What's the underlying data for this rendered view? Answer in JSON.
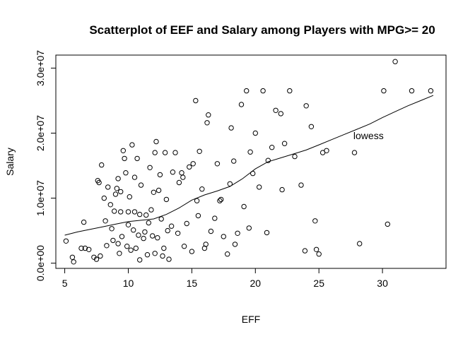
{
  "chart_data": {
    "type": "scatter",
    "title": "Scatterplot of EEF and Salary among Players with MPG>= 20",
    "xlabel": "EFF",
    "ylabel": "Salary",
    "xlim": [
      4.3,
      35.0
    ],
    "ylim": [
      -800000,
      32000000
    ],
    "xticks": [
      5,
      10,
      15,
      20,
      25,
      30
    ],
    "xtick_labels": [
      "5",
      "10",
      "15",
      "20",
      "25",
      "30"
    ],
    "yticks": [
      0,
      10000000,
      20000000,
      30000000
    ],
    "ytick_labels": [
      "0.0e+00",
      "1.0e+07",
      "2.0e+07",
      "3.0e+07"
    ],
    "annotation": {
      "text": "lowess",
      "x": 28.9,
      "y": 19600000
    },
    "lowess": {
      "x": [
        5.0,
        6.0,
        7.0,
        8.0,
        9.0,
        10.0,
        11.0,
        12.0,
        13.0,
        14.0,
        15.0,
        16.0,
        17.0,
        18.0,
        19.0,
        20.0,
        21.0,
        22.0,
        23.0,
        24.0,
        25.0,
        26.0,
        27.0,
        28.0,
        29.0,
        30.0,
        31.0,
        32.0,
        33.0,
        34.0
      ],
      "y": [
        4300000,
        4800000,
        5200000,
        5600000,
        6000000,
        6400000,
        6600000,
        6800000,
        7500000,
        8500000,
        9700000,
        10500000,
        11100000,
        11800000,
        13000000,
        14500000,
        15600000,
        16200000,
        16800000,
        17400000,
        18200000,
        19000000,
        19800000,
        20600000,
        21400000,
        22400000,
        23300000,
        24200000,
        25000000,
        25800000
      ]
    },
    "points": {
      "x": [
        5.1,
        5.6,
        5.7,
        6.3,
        6.5,
        6.6,
        6.9,
        7.3,
        7.5,
        7.6,
        7.7,
        7.8,
        7.9,
        8.1,
        8.2,
        8.3,
        8.4,
        8.6,
        8.7,
        8.8,
        8.9,
        9.0,
        9.1,
        9.2,
        9.2,
        9.3,
        9.4,
        9.4,
        9.5,
        9.6,
        9.7,
        9.8,
        9.9,
        10.0,
        10.0,
        10.1,
        10.2,
        10.3,
        10.4,
        10.5,
        10.5,
        10.6,
        10.7,
        10.8,
        10.9,
        11.0,
        11.2,
        11.4,
        11.5,
        11.6,
        11.7,
        11.8,
        11.9,
        12.0,
        12.1,
        12.2,
        12.3,
        12.4,
        12.5,
        12.6,
        12.7,
        12.8,
        12.9,
        13.0,
        13.2,
        13.4,
        13.5,
        13.7,
        13.9,
        14.0,
        14.2,
        14.4,
        14.6,
        14.8,
        15.0,
        15.1,
        15.3,
        15.4,
        15.6,
        15.8,
        16.0,
        16.2,
        16.3,
        16.5,
        16.8,
        17.0,
        17.3,
        17.5,
        17.8,
        18.0,
        18.1,
        18.3,
        18.6,
        18.9,
        19.1,
        19.3,
        19.5,
        19.8,
        20.0,
        20.3,
        20.6,
        21.0,
        21.3,
        21.6,
        22.0,
        22.3,
        22.7,
        23.1,
        23.6,
        24.0,
        24.4,
        24.7,
        25.0,
        25.3,
        25.6,
        27.8,
        28.2,
        30.1,
        30.4,
        31.0,
        32.3,
        33.8,
        10.9,
        11.3,
        12.1,
        13.1,
        14.3,
        15.5,
        16.1,
        17.2,
        18.4,
        19.6,
        20.9,
        22.1,
        23.9,
        24.8
      ],
      "y": [
        3400000,
        900000,
        200000,
        2300000,
        6300000,
        2300000,
        2100000,
        900000,
        600000,
        12700000,
        12400000,
        1100000,
        15100000,
        10000000,
        6500000,
        2700000,
        11700000,
        9000000,
        5300000,
        3500000,
        8000000,
        10600000,
        11500000,
        3000000,
        13000000,
        1500000,
        7900000,
        11000000,
        4100000,
        17300000,
        16100000,
        13900000,
        2600000,
        5900000,
        7900000,
        10200000,
        2000000,
        18200000,
        5100000,
        7900000,
        13200000,
        2300000,
        16100000,
        4300000,
        500000,
        12000000,
        3800000,
        7400000,
        1300000,
        6200000,
        14700000,
        8200000,
        4200000,
        10900000,
        17000000,
        18700000,
        3900000,
        11200000,
        13600000,
        6800000,
        1100000,
        2300000,
        17000000,
        9800000,
        600000,
        5700000,
        14000000,
        17000000,
        4600000,
        12400000,
        13900000,
        2600000,
        6100000,
        14800000,
        1800000,
        15300000,
        25000000,
        9600000,
        17200000,
        11400000,
        2300000,
        21600000,
        22800000,
        4900000,
        6900000,
        15300000,
        9800000,
        4100000,
        1400000,
        12200000,
        20800000,
        15700000,
        4600000,
        24400000,
        8700000,
        26500000,
        5400000,
        13800000,
        20000000,
        11700000,
        26500000,
        15800000,
        17800000,
        23500000,
        23000000,
        18400000,
        26500000,
        16400000,
        12000000,
        24200000,
        21000000,
        6500000,
        1400000,
        17000000,
        17300000,
        17000000,
        3000000,
        26500000,
        6000000,
        31000000,
        26500000,
        26500000,
        7500000,
        4800000,
        1500000,
        5000000,
        13200000,
        7300000,
        2900000,
        9600000,
        2900000,
        17100000,
        4700000,
        11300000,
        1900000,
        2100000
      ]
    }
  }
}
